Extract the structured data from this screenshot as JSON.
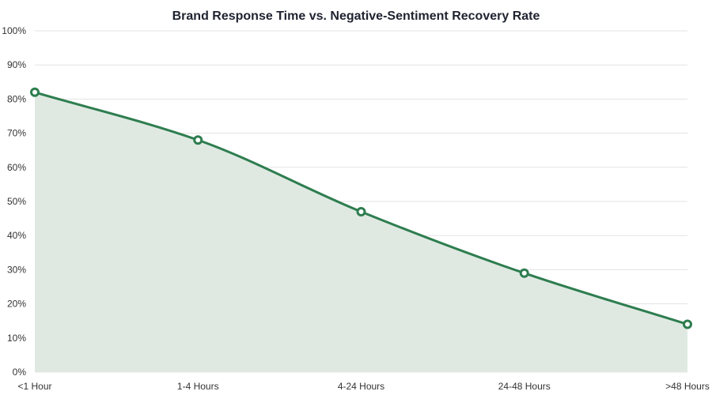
{
  "chart_data": {
    "type": "line",
    "title": "Brand Response Time vs. Negative-Sentiment Recovery Rate",
    "xlabel": "",
    "ylabel": "",
    "categories": [
      "<1 Hour",
      "1-4 Hours",
      "4-24 Hours",
      "24-48 Hours",
      ">48 Hours"
    ],
    "series": [
      {
        "values": [
          82,
          68,
          47,
          29,
          14
        ],
        "color": "#2e7d4f",
        "fill": "area"
      }
    ],
    "ylim": [
      0,
      100
    ],
    "yticks": [
      0,
      10,
      20,
      30,
      40,
      50,
      60,
      70,
      80,
      90,
      100
    ],
    "ytick_labels": [
      "0%",
      "10%",
      "20%",
      "30%",
      "40%",
      "50%",
      "60%",
      "70%",
      "80%",
      "90%",
      "100%"
    ],
    "grid": true,
    "legend": "none",
    "colors": {
      "line": "#2e7d4f",
      "area": "#dfe9e2",
      "grid": "#e3e3e3",
      "text": "#333333"
    }
  }
}
